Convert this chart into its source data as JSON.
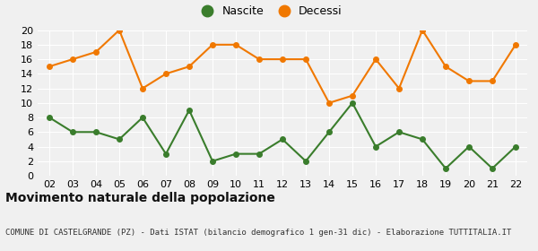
{
  "years": [
    "02",
    "03",
    "04",
    "05",
    "06",
    "07",
    "08",
    "09",
    "10",
    "11",
    "12",
    "13",
    "14",
    "15",
    "16",
    "17",
    "18",
    "19",
    "20",
    "21",
    "22"
  ],
  "nascite": [
    8,
    6,
    6,
    5,
    8,
    3,
    9,
    2,
    3,
    3,
    5,
    2,
    6,
    10,
    4,
    6,
    5,
    1,
    4,
    1,
    4
  ],
  "decessi": [
    15,
    16,
    17,
    20,
    12,
    14,
    15,
    18,
    18,
    16,
    16,
    16,
    10,
    11,
    16,
    12,
    20,
    15,
    13,
    13,
    18
  ],
  "nascite_color": "#3a7d2c",
  "decessi_color": "#f07800",
  "background_color": "#f0f0f0",
  "grid_color": "#ffffff",
  "title": "Movimento naturale della popolazione",
  "subtitle": "COMUNE DI CASTELGRANDE (PZ) - Dati ISTAT (bilancio demografico 1 gen-31 dic) - Elaborazione TUTTITALIA.IT",
  "ylim": [
    0,
    20
  ],
  "yticks": [
    0,
    2,
    4,
    6,
    8,
    10,
    12,
    14,
    16,
    18,
    20
  ],
  "legend_nascite": "Nascite",
  "legend_decessi": "Decessi",
  "title_fontsize": 10,
  "subtitle_fontsize": 6.5,
  "tick_fontsize": 8,
  "legend_fontsize": 9
}
